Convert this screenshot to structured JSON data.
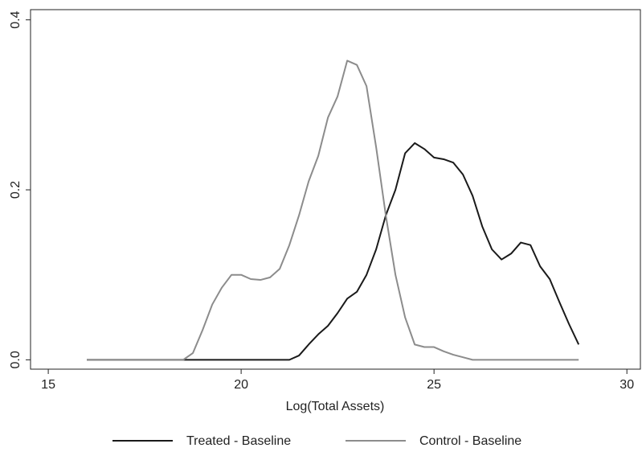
{
  "chart_data": {
    "type": "line",
    "xlabel": "Log(Total Assets)",
    "x": [
      16,
      16.25,
      16.5,
      16.75,
      17,
      17.25,
      17.5,
      17.75,
      18,
      18.25,
      18.5,
      18.75,
      19,
      19.25,
      19.5,
      19.75,
      20,
      20.25,
      20.5,
      20.75,
      21,
      21.25,
      21.5,
      21.75,
      22,
      22.25,
      22.5,
      22.75,
      23,
      23.25,
      23.5,
      23.75,
      24,
      24.25,
      24.5,
      24.75,
      25,
      25.25,
      25.5,
      25.75,
      26,
      26.25,
      26.5,
      26.75,
      27,
      27.25,
      27.5,
      27.75,
      28,
      28.25,
      28.5,
      28.75
    ],
    "series": [
      {
        "name": "Treated - Baseline",
        "color": "#1a1a1a",
        "values": [
          0,
          0,
          0,
          0,
          0,
          0,
          0,
          0,
          0,
          0,
          0,
          0,
          0,
          0,
          0,
          0,
          0,
          0,
          0,
          0,
          0,
          0,
          0.005,
          0.018,
          0.03,
          0.04,
          0.055,
          0.072,
          0.08,
          0.1,
          0.13,
          0.17,
          0.2,
          0.243,
          0.255,
          0.248,
          0.238,
          0.236,
          0.232,
          0.218,
          0.193,
          0.157,
          0.13,
          0.118,
          0.125,
          0.138,
          0.135,
          0.11,
          0.095,
          0.068,
          0.042,
          0.018
        ]
      },
      {
        "name": "Control - Baseline",
        "color": "#8c8c8c",
        "values": [
          0,
          0,
          0,
          0,
          0,
          0,
          0,
          0,
          0,
          0,
          0,
          0.008,
          0.035,
          0.065,
          0.085,
          0.1,
          0.1,
          0.095,
          0.094,
          0.097,
          0.107,
          0.135,
          0.17,
          0.21,
          0.24,
          0.285,
          0.31,
          0.352,
          0.347,
          0.322,
          0.25,
          0.17,
          0.1,
          0.05,
          0.018,
          0.015,
          0.015,
          0.01,
          0.006,
          0.003,
          0,
          0,
          0,
          0,
          0,
          0,
          0,
          0,
          0,
          0,
          0,
          0
        ]
      }
    ],
    "xlim": [
      14.54,
      30.35
    ],
    "xticks": [
      15,
      20,
      25,
      30
    ],
    "ylim": [
      -0.011,
      0.412
    ],
    "yticks": [
      {
        "value": 0,
        "label": "0.0"
      },
      0.2,
      0.4
    ],
    "grid": false,
    "legend": "bottom"
  }
}
